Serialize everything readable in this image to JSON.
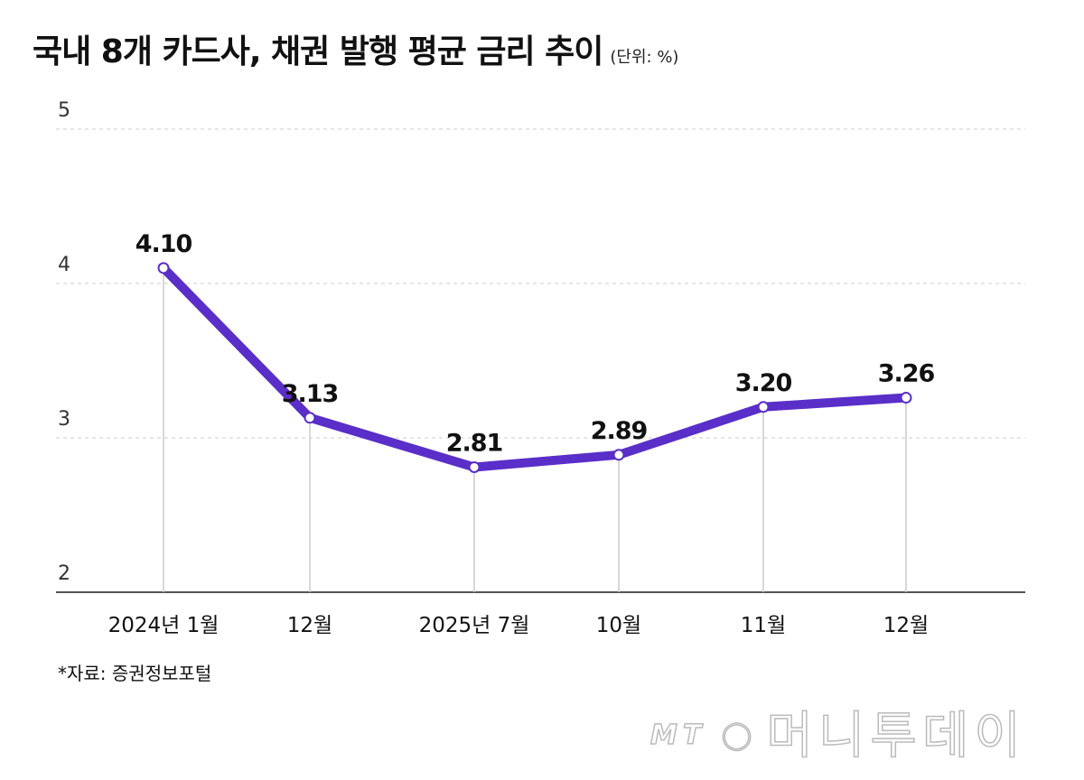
{
  "chart_data": {
    "type": "line",
    "title": "국내 8개 카드사, 채권 발행 평균 금리 추이",
    "unit": "(단위: %)",
    "categories": [
      "2024년 1월",
      "12월",
      "2025년 7월",
      "10월",
      "11월",
      "12월"
    ],
    "values": [
      4.1,
      3.13,
      2.81,
      2.89,
      3.2,
      3.26
    ],
    "data_labels": [
      "4.10",
      "3.13",
      "2.81",
      "2.89",
      "3.20",
      "3.26"
    ],
    "yticks": [
      "2",
      "3",
      "4",
      "5"
    ],
    "ylim": [
      2,
      5
    ],
    "grid": "horizontal dashed",
    "line_color": "#5a2ec8",
    "source": "*자료: 증권정보포털"
  },
  "logo": {
    "text": "머니투데이",
    "mark": "MT"
  }
}
